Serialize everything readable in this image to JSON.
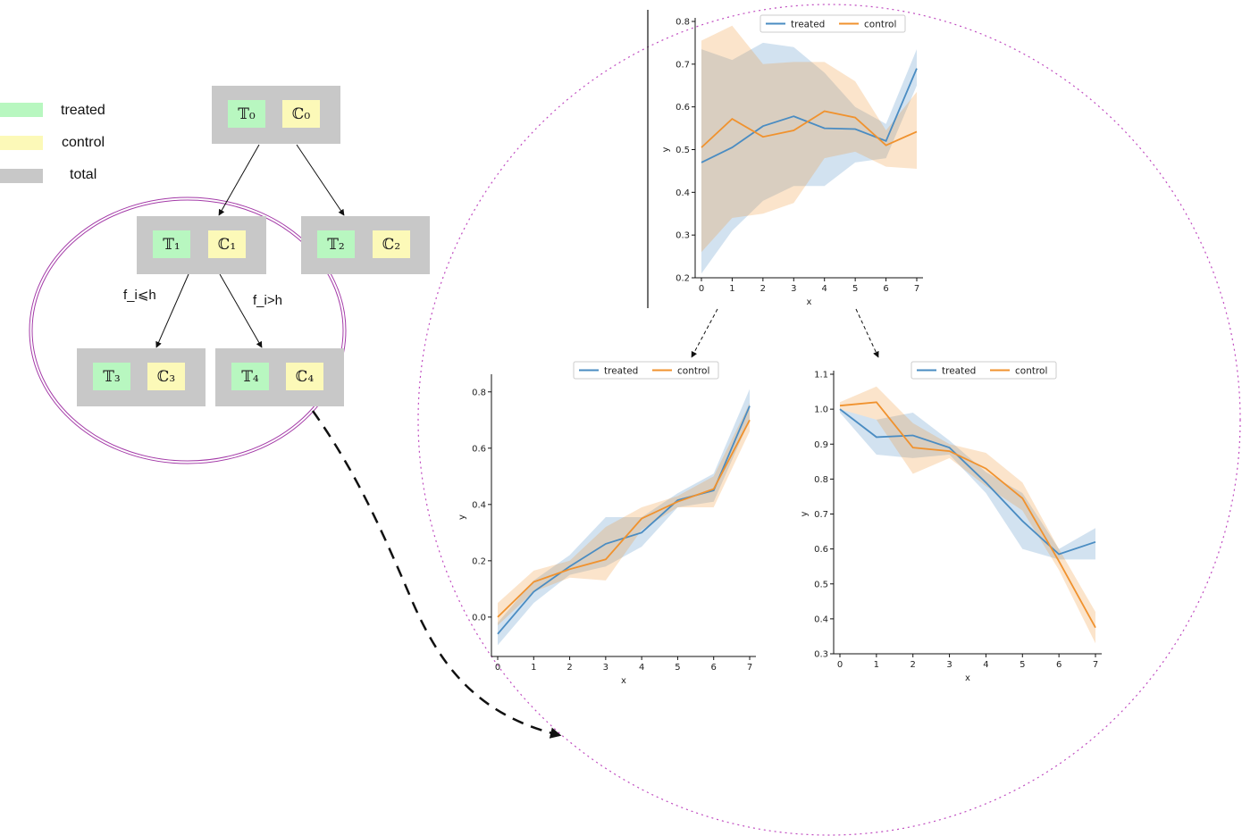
{
  "legend": [
    {
      "label": "treated",
      "color": "#b8f7c0"
    },
    {
      "label": "control",
      "color": "#fcf9b8"
    },
    {
      "label": "total",
      "color": "#c8c8c8"
    }
  ],
  "tree": {
    "nodes": [
      {
        "id": "n0",
        "treated": "𝕋₀",
        "control": "ℂ₀"
      },
      {
        "id": "n1",
        "treated": "𝕋₁",
        "control": "ℂ₁"
      },
      {
        "id": "n2",
        "treated": "𝕋₂",
        "control": "ℂ₂"
      },
      {
        "id": "n3",
        "treated": "𝕋₃",
        "control": "ℂ₃"
      },
      {
        "id": "n4",
        "treated": "𝕋₄",
        "control": "ℂ₄"
      }
    ],
    "split_labels": {
      "left": "f_i⩽h",
      "right": "f_i>h"
    }
  },
  "colors": {
    "treated": "#4a8cc2",
    "control": "#f0922e",
    "ellipse": "#a43ba8",
    "circle": "#c04cc0"
  },
  "chart_data": [
    {
      "type": "line",
      "x": [
        0,
        1,
        2,
        3,
        4,
        5,
        6,
        7
      ],
      "xlabel": "x",
      "ylabel": "y",
      "xlim": [
        0,
        7
      ],
      "ylim": [
        0.2,
        0.8
      ],
      "yticks": [
        0.2,
        0.3,
        0.4,
        0.5,
        0.6,
        0.7,
        0.8
      ],
      "ytick_labels": [
        "0.2",
        "0.3",
        "0.4",
        "0.5",
        "0.6",
        "0.7",
        "0.8"
      ],
      "xticks": [
        0,
        1,
        2,
        3,
        4,
        5,
        6,
        7
      ],
      "xtick_labels": [
        "0",
        "1",
        "2",
        "3",
        "4",
        "5",
        "6",
        "7"
      ],
      "legend_position": "top-center",
      "series": [
        {
          "name": "treated",
          "values": [
            0.47,
            0.505,
            0.555,
            0.578,
            0.55,
            0.548,
            0.52,
            0.69
          ],
          "lower": [
            0.21,
            0.31,
            0.38,
            0.415,
            0.415,
            0.47,
            0.48,
            0.65
          ],
          "upper": [
            0.735,
            0.71,
            0.75,
            0.74,
            0.68,
            0.6,
            0.56,
            0.735
          ]
        },
        {
          "name": "control",
          "values": [
            0.505,
            0.572,
            0.53,
            0.545,
            0.59,
            0.575,
            0.51,
            0.542
          ],
          "lower": [
            0.26,
            0.34,
            0.35,
            0.375,
            0.48,
            0.495,
            0.46,
            0.455
          ],
          "upper": [
            0.755,
            0.79,
            0.7,
            0.705,
            0.705,
            0.66,
            0.545,
            0.635
          ]
        }
      ]
    },
    {
      "type": "line",
      "x": [
        0,
        1,
        2,
        3,
        4,
        5,
        6,
        7
      ],
      "xlabel": "x",
      "ylabel": "y",
      "xlim": [
        0,
        7
      ],
      "ylim": [
        -0.14,
        0.85
      ],
      "yticks": [
        0.0,
        0.2,
        0.4,
        0.6,
        0.8
      ],
      "ytick_labels": [
        "0.0",
        "0.2",
        "0.4",
        "0.6",
        "0.8"
      ],
      "xticks": [
        0,
        1,
        2,
        3,
        4,
        5,
        6,
        7
      ],
      "xtick_labels": [
        "0",
        "1",
        "2",
        "3",
        "4",
        "5",
        "6",
        "7"
      ],
      "legend_position": "top-center",
      "series": [
        {
          "name": "treated",
          "values": [
            -0.06,
            0.09,
            0.18,
            0.26,
            0.3,
            0.415,
            0.45,
            0.75
          ],
          "lower": [
            -0.1,
            0.05,
            0.15,
            0.18,
            0.25,
            0.39,
            0.41,
            0.7
          ],
          "upper": [
            -0.02,
            0.13,
            0.22,
            0.355,
            0.355,
            0.44,
            0.51,
            0.81
          ]
        },
        {
          "name": "control",
          "values": [
            0.0,
            0.125,
            0.17,
            0.205,
            0.35,
            0.41,
            0.455,
            0.7
          ],
          "lower": [
            -0.03,
            0.09,
            0.14,
            0.13,
            0.31,
            0.39,
            0.39,
            0.66
          ],
          "upper": [
            0.05,
            0.165,
            0.2,
            0.32,
            0.39,
            0.43,
            0.5,
            0.76
          ]
        }
      ]
    },
    {
      "type": "line",
      "x": [
        0,
        1,
        2,
        3,
        4,
        5,
        6,
        7
      ],
      "xlabel": "x",
      "ylabel": "y",
      "xlim": [
        0,
        7
      ],
      "ylim": [
        0.3,
        1.1
      ],
      "yticks": [
        0.3,
        0.4,
        0.5,
        0.6,
        0.7,
        0.8,
        0.9,
        1.0,
        1.1
      ],
      "ytick_labels": [
        "0.3",
        "0.4",
        "0.5",
        "0.6",
        "0.7",
        "0.8",
        "0.9",
        "1.0",
        "1.1"
      ],
      "xticks": [
        0,
        1,
        2,
        3,
        4,
        5,
        6,
        7
      ],
      "xtick_labels": [
        "0",
        "1",
        "2",
        "3",
        "4",
        "5",
        "6",
        "7"
      ],
      "legend_position": "top-right",
      "series": [
        {
          "name": "treated",
          "values": [
            1.0,
            0.92,
            0.925,
            0.89,
            0.79,
            0.68,
            0.585,
            0.62
          ],
          "lower": [
            0.99,
            0.87,
            0.86,
            0.87,
            0.76,
            0.6,
            0.57,
            0.57
          ],
          "upper": [
            1.0,
            0.97,
            0.99,
            0.91,
            0.82,
            0.76,
            0.6,
            0.66
          ]
        },
        {
          "name": "control",
          "values": [
            1.01,
            1.02,
            0.89,
            0.88,
            0.83,
            0.745,
            0.565,
            0.375
          ],
          "lower": [
            1.0,
            0.97,
            0.815,
            0.86,
            0.78,
            0.71,
            0.54,
            0.33
          ],
          "upper": [
            1.02,
            1.065,
            0.96,
            0.9,
            0.875,
            0.79,
            0.6,
            0.42
          ]
        }
      ]
    }
  ]
}
